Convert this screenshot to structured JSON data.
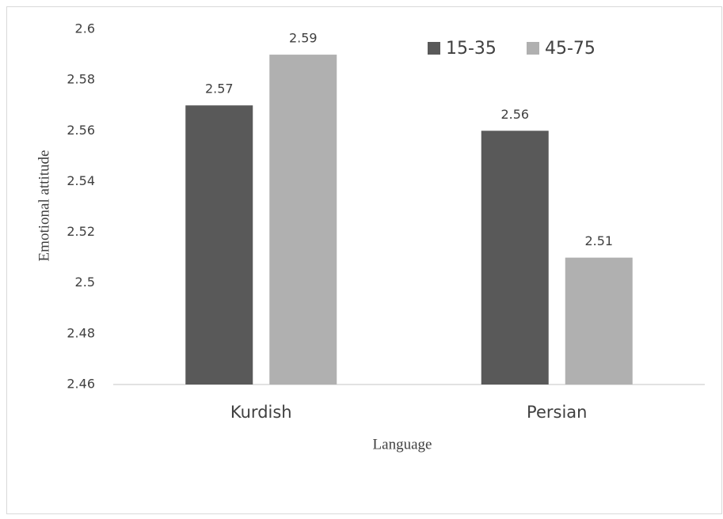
{
  "chart_data": {
    "type": "bar",
    "categories": [
      "Kurdish",
      "Persian"
    ],
    "series": [
      {
        "name": "15-35",
        "color": "#595959",
        "values": [
          2.57,
          2.56
        ]
      },
      {
        "name": "45-75",
        "color": "#b0b0b0",
        "values": [
          2.59,
          2.51
        ]
      }
    ],
    "ylim": [
      2.46,
      2.6
    ],
    "yticks": [
      2.46,
      2.48,
      2.5,
      2.52,
      2.54,
      2.56,
      2.58,
      2.6
    ],
    "y_label": "Emotional attitude",
    "x_label": "Language",
    "grid": false,
    "legend": "top-right"
  }
}
